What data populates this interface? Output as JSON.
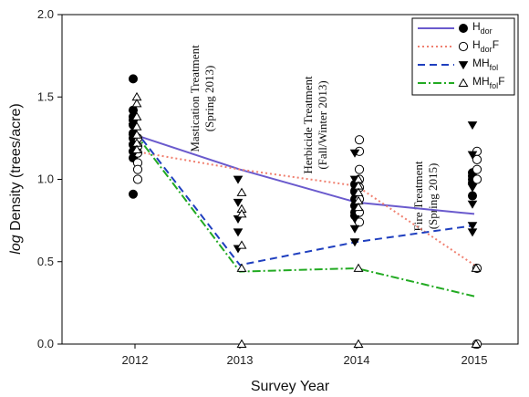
{
  "chart_data": {
    "type": "line",
    "xlabel": "Survey Year",
    "ylabel_italic": "log",
    "ylabel_rest": " Density (trees/acre)",
    "x": [
      2012,
      2013,
      2014,
      2015
    ],
    "x_tick_labels": [
      "2012",
      "2013",
      "2014",
      "2015"
    ],
    "ylim": [
      0,
      2.0
    ],
    "y_ticks": [
      0.0,
      0.5,
      1.0,
      1.5,
      2.0
    ],
    "y_tick_labels": [
      "0.0",
      "0.5",
      "1.0",
      "1.5",
      "2.0"
    ],
    "legend_position": "top-right",
    "annotations": [
      {
        "lines": [
          "Mastication Treatment",
          "(Spring 2013)"
        ]
      },
      {
        "lines": [
          "Herbicide Treatment",
          "(Fall/Winter 2013)"
        ]
      },
      {
        "lines": [
          "Fire Treatment",
          "(Spring 2015)"
        ]
      }
    ],
    "series": [
      {
        "name_main": "H",
        "name_sub": "dor",
        "name_suffix": "",
        "line_style": "solid",
        "color": "#6a5acd",
        "marker": "filled-circle",
        "mean": [
          1.27,
          1.06,
          0.86,
          0.79
        ],
        "points": [
          [
            1.61,
            1.36,
            1.38,
            1.42,
            1.33,
            1.28,
            1.25,
            1.21,
            1.17,
            1.13,
            0.91
          ],
          [],
          [
            0.97,
            0.93,
            0.88,
            0.84,
            0.8,
            0.78
          ],
          [
            1.04,
            1.02,
            1.0,
            0.98,
            0.9
          ]
        ]
      },
      {
        "name_main": "H",
        "name_sub": "dor",
        "name_suffix": "F",
        "line_style": "dotted",
        "color": "#f08070",
        "marker": "open-circle",
        "mean": [
          1.17,
          1.06,
          0.96,
          0.48
        ],
        "points": [
          [
            1.25,
            1.2,
            1.16,
            1.1,
            1.06,
            1.0
          ],
          [],
          [
            1.24,
            1.17,
            1.06,
            1.0,
            0.95,
            0.88,
            0.8,
            0.74
          ],
          [
            1.17,
            1.12,
            1.06,
            1.0,
            0.46,
            0.0
          ]
        ]
      },
      {
        "name_main": "MH",
        "name_sub": "fol",
        "name_suffix": "",
        "line_style": "dashed",
        "color": "#1f3fbf",
        "marker": "filled-triangle-down",
        "mean": [
          1.3,
          0.48,
          0.62,
          0.72
        ],
        "points": [
          [
            1.4,
            1.32,
            1.25,
            1.2,
            1.15
          ],
          [
            1.0,
            0.86,
            0.76,
            0.68,
            0.58
          ],
          [
            1.16,
            1.0,
            0.9,
            0.82,
            0.76,
            0.7,
            0.62
          ],
          [
            1.33,
            1.15,
            0.95,
            0.85,
            0.72,
            0.68
          ]
        ]
      },
      {
        "name_main": "MH",
        "name_sub": "fol",
        "name_suffix": "F",
        "line_style": "dashdot",
        "color": "#22aa22",
        "marker": "open-triangle-up",
        "mean": [
          1.28,
          0.44,
          0.46,
          0.29
        ],
        "points": [
          [
            1.5,
            1.46,
            1.38,
            1.32,
            1.27,
            1.22,
            1.18
          ],
          [
            0.92,
            0.82,
            0.79,
            0.6,
            0.46,
            0.0
          ],
          [
            1.0,
            0.96,
            0.92,
            0.87,
            0.83,
            0.46,
            0.0
          ],
          [
            0.46,
            0.0
          ]
        ]
      }
    ]
  }
}
